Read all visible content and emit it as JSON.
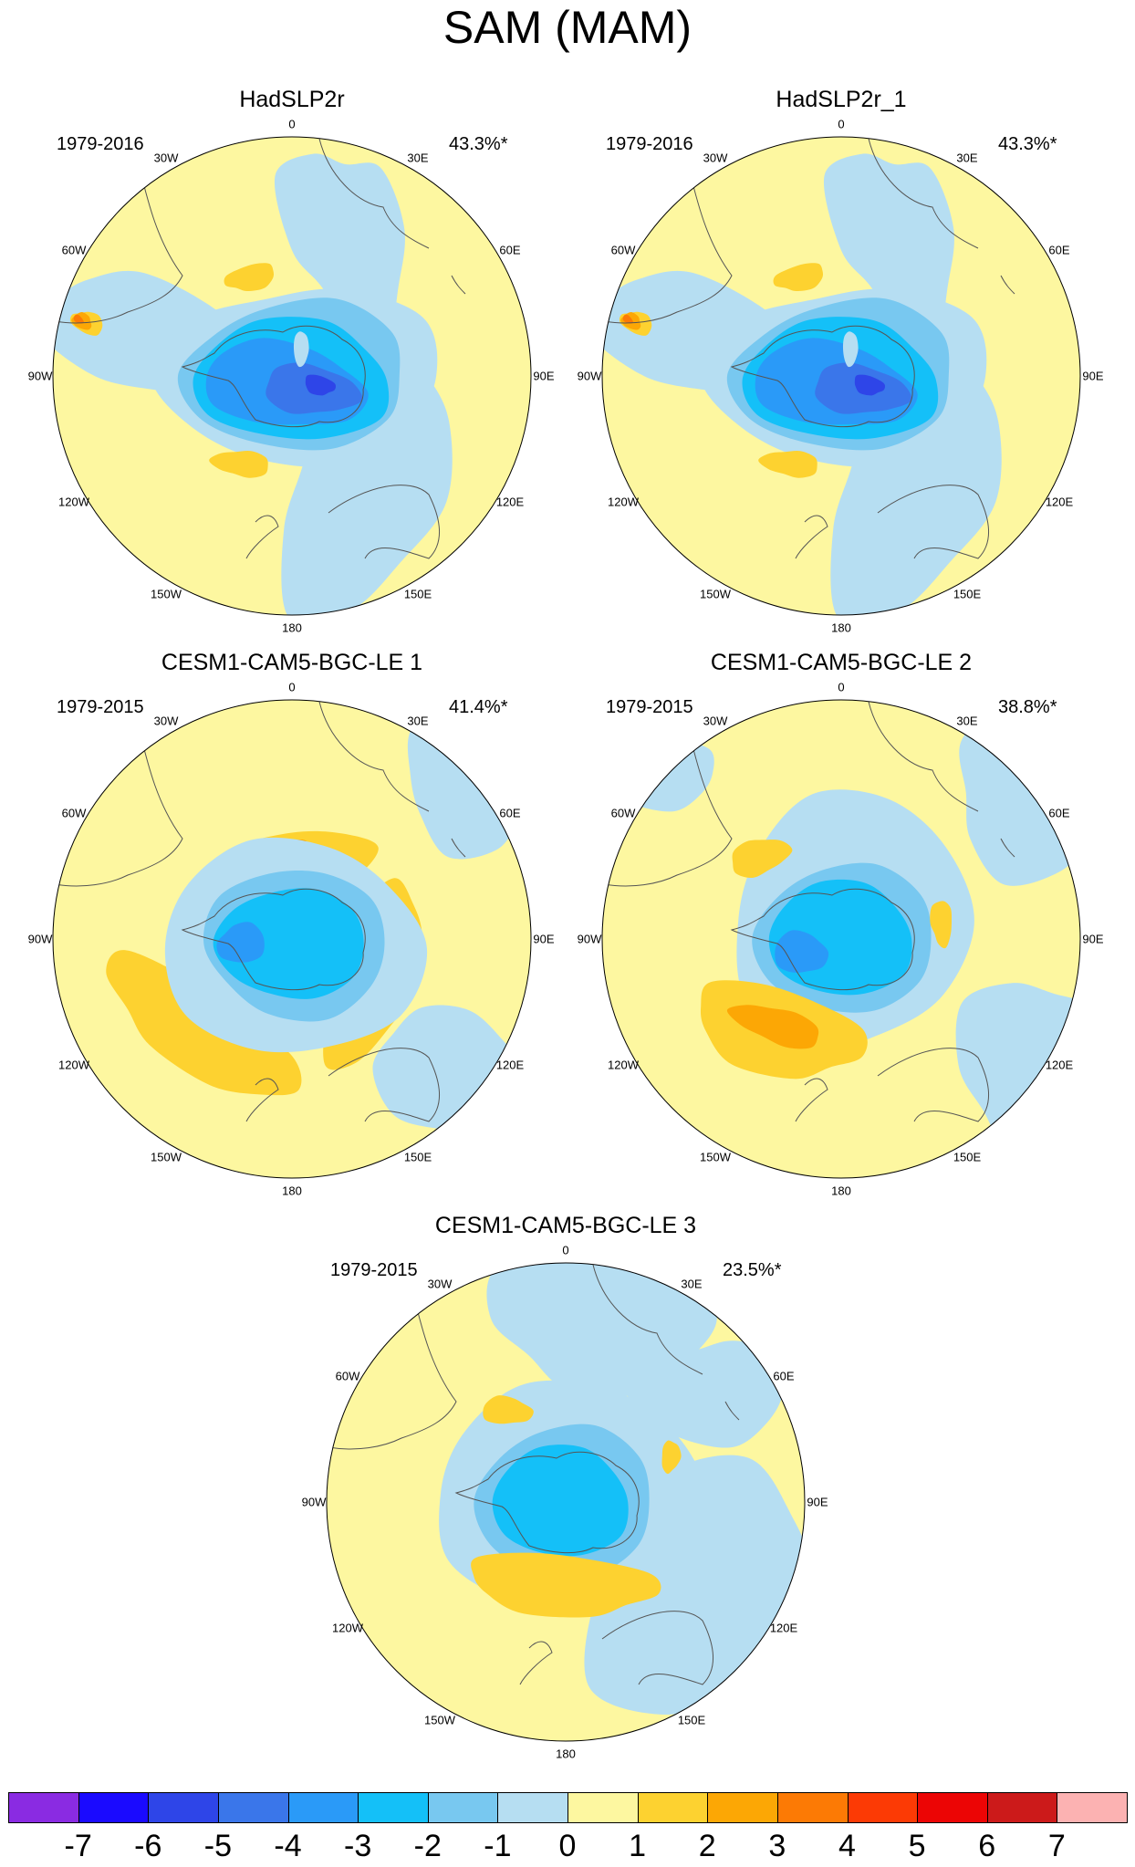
{
  "title": "SAM (MAM)",
  "panels": [
    {
      "title": "HadSLP2r",
      "period": "1979-2016",
      "variance": "43.3%*",
      "pattern": "obs"
    },
    {
      "title": "HadSLP2r_1",
      "period": "1979-2016",
      "variance": "43.3%*",
      "pattern": "obs"
    },
    {
      "title": "CESM1-CAM5-BGC-LE 1",
      "period": "1979-2015",
      "variance": "41.4%*",
      "pattern": "m1"
    },
    {
      "title": "CESM1-CAM5-BGC-LE 2",
      "period": "1979-2015",
      "variance": "38.8%*",
      "pattern": "m2"
    },
    {
      "title": "CESM1-CAM5-BGC-LE 3",
      "period": "1979-2015",
      "variance": "23.5%*",
      "pattern": "m3"
    }
  ],
  "longitude_labels": [
    "0",
    "30E",
    "60E",
    "90E",
    "120E",
    "150E",
    "180",
    "150W",
    "120W",
    "90W",
    "60W",
    "30W"
  ],
  "colorbar": {
    "labels": [
      "-7",
      "-6",
      "-5",
      "-4",
      "-3",
      "-2",
      "-1",
      "0",
      "1",
      "2",
      "3",
      "4",
      "5",
      "6",
      "7"
    ],
    "colors": [
      "#8a2be2",
      "#1a0aff",
      "#2e45e8",
      "#3a76ea",
      "#2a9af8",
      "#14c0f8",
      "#78c8f0",
      "#b6def2",
      "#fdf7a0",
      "#fdd230",
      "#fca705",
      "#fc7a05",
      "#fc3a05",
      "#ec0505",
      "#cc1a1a",
      "#fcb2b2"
    ]
  }
}
